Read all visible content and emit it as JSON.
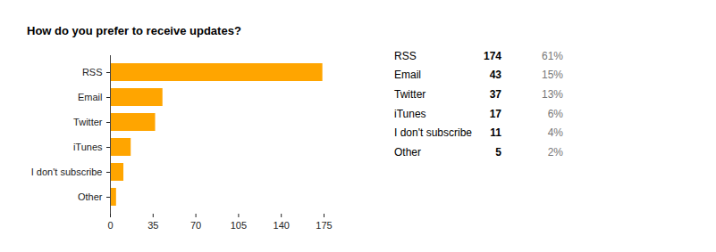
{
  "chart_data": {
    "type": "bar",
    "orientation": "horizontal",
    "title": "How do you prefer to receive updates?",
    "categories": [
      "RSS",
      "Email",
      "Twitter",
      "iTunes",
      "I don't subscribe",
      "Other"
    ],
    "values": [
      174,
      43,
      37,
      17,
      11,
      5
    ],
    "percentages": [
      61,
      15,
      13,
      6,
      4,
      2
    ],
    "percentage_labels": [
      "61%",
      "15%",
      "13%",
      "6%",
      "4%",
      "2%"
    ],
    "color": "#ffa500",
    "xlim": [
      0,
      175
    ],
    "xticks": [
      0,
      35,
      70,
      105,
      140,
      175
    ],
    "grid": false
  }
}
